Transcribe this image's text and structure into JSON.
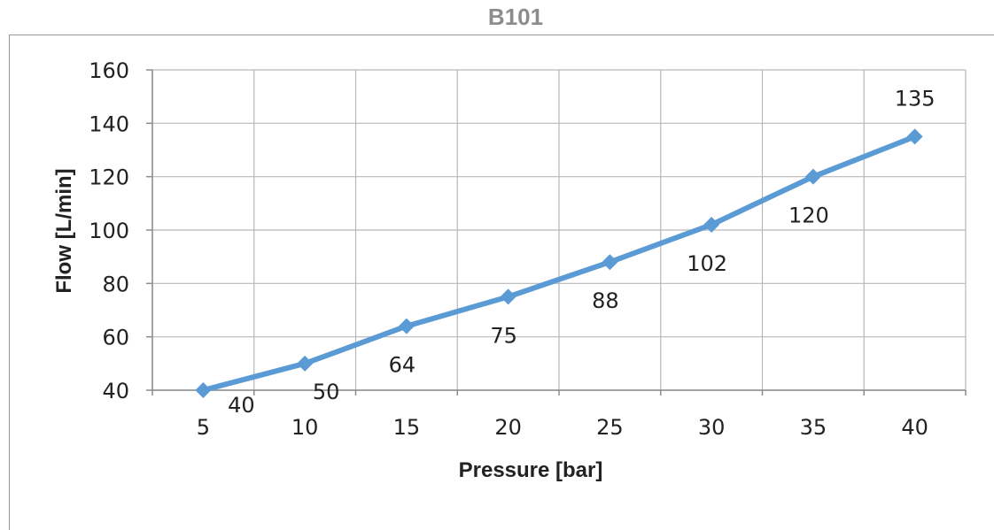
{
  "chart_data": {
    "type": "line",
    "title": "B101",
    "xlabel": "Pressure [bar]",
    "ylabel": "Flow [L/min]",
    "categories": [
      "5",
      "10",
      "15",
      "20",
      "25",
      "30",
      "35",
      "40"
    ],
    "values": [
      40,
      50,
      64,
      75,
      88,
      102,
      120,
      135
    ],
    "data_labels": [
      "40",
      "50",
      "64",
      "75",
      "88",
      "102",
      "120",
      "135"
    ],
    "yticks": [
      "40",
      "60",
      "80",
      "100",
      "120",
      "140",
      "160"
    ],
    "ylim": [
      40,
      160
    ],
    "grid": true,
    "legend": "none",
    "line_color": "#5b9bd5"
  }
}
